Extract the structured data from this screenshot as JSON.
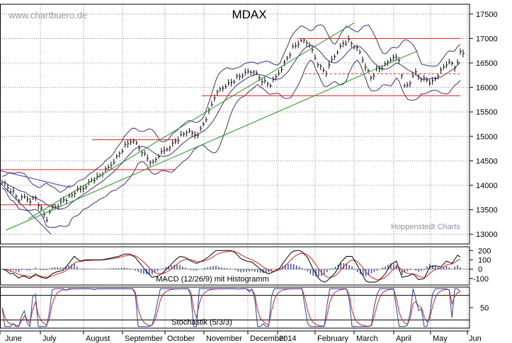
{
  "chart_data": {
    "type": "line",
    "title": "MDAX",
    "watermark": "www.chartbuero.de",
    "credit": "Hoppenstedt Charts",
    "x_months": [
      "June",
      "July",
      "August",
      "September",
      "October",
      "November",
      "December",
      "2014",
      "February",
      "March",
      "April",
      "May",
      "Jun"
    ],
    "price_panel": {
      "ylim": [
        12800,
        17700
      ],
      "yticks": [
        13000,
        13500,
        14000,
        14500,
        15000,
        15500,
        16000,
        16500,
        17000,
        17500
      ],
      "series": [
        {
          "values": [
            14100,
            13950,
            13850,
            13700,
            13750,
            13700,
            13750,
            13500,
            13300,
            13550,
            13600,
            13700,
            13750,
            13850,
            13900,
            14000,
            14100,
            14150,
            14250,
            14350,
            14500,
            14650,
            14800,
            14900,
            14850,
            14700,
            14550,
            14450,
            14600,
            14700,
            14800,
            14900,
            15000,
            15100,
            15050,
            15050,
            15250,
            15500,
            15800,
            15950,
            16050,
            16100,
            16200,
            16250,
            16300,
            16350,
            16200,
            16100,
            16050,
            16200,
            16400,
            16600,
            16800,
            16900,
            16950,
            16900,
            16600,
            16400,
            16300,
            16550,
            16750,
            16900,
            16950,
            16850,
            16700,
            16450,
            16200,
            16350,
            16400,
            16500,
            16650,
            16550,
            16000,
            16100,
            16300,
            16200,
            16150,
            16100,
            16250,
            16400,
            16550,
            16400,
            16700
          ]
        }
      ],
      "horizontal_lines": [
        {
          "value": 17000,
          "color": "#e0201f"
        },
        {
          "value": 16280,
          "color": "#e0201f",
          "dashed": true
        },
        {
          "value": 15830,
          "color": "#e0201f"
        },
        {
          "value": 14930,
          "color": "#e0201f"
        },
        {
          "value": 14320,
          "color": "#e0201f"
        },
        {
          "value": 13600,
          "color": "#e0201f"
        }
      ],
      "trendline_color": "#1f9a1f",
      "band_color": "#4a2a7a",
      "bar_color": "#000000"
    },
    "macd_panel": {
      "label": "MACD (12/26/9) mit Histogramm",
      "ylim": [
        -170,
        240
      ],
      "yticks": [
        -100,
        0,
        100,
        200
      ],
      "ytick_labels": [
        "-100",
        "0",
        "100",
        "200"
      ],
      "macd_color": "#000000",
      "signal_color": "#e0201f",
      "hist_color": "#2b3fae"
    },
    "stoch_panel": {
      "label": "Stochastik (5/3/3)",
      "ylim": [
        0,
        100
      ],
      "yticks": [
        50
      ],
      "ytick_labels": [
        "50"
      ],
      "k_color": "#2b3fae",
      "d_color": "#e0201f"
    }
  }
}
